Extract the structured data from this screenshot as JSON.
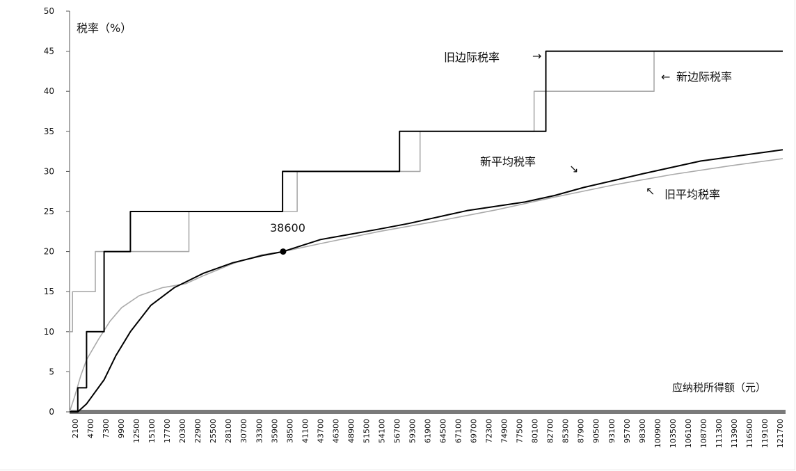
{
  "chart_data": {
    "type": "line",
    "ylabel": "税率（%）",
    "xlabel": "应纳税所得额（元）",
    "ylim": [
      0,
      50
    ],
    "yticks": [
      0,
      5,
      10,
      15,
      20,
      25,
      30,
      35,
      40,
      45,
      50
    ],
    "xlim": [
      2100,
      124000
    ],
    "xtick_labels": [
      "2100",
      "4700",
      "7300",
      "9900",
      "12500",
      "15100",
      "17700",
      "20300",
      "22900",
      "25500",
      "28100",
      "30700",
      "33300",
      "35900",
      "38500",
      "41100",
      "43700",
      "46300",
      "48900",
      "51500",
      "54100",
      "56700",
      "59300",
      "61900",
      "64500",
      "67100",
      "69700",
      "72300",
      "74900",
      "77500",
      "80100",
      "82700",
      "85300",
      "87900",
      "90500",
      "93100",
      "95700",
      "98300",
      "100900",
      "103500",
      "106100",
      "108700",
      "111300",
      "113900",
      "116500",
      "119100",
      "121700"
    ],
    "annotation_point": {
      "label": "38600",
      "x": 38600,
      "y": 20
    },
    "series": [
      {
        "name": "旧边际税率",
        "color": "#000000",
        "style": "step",
        "points": [
          [
            2100,
            0
          ],
          [
            3500,
            0
          ],
          [
            3500,
            3
          ],
          [
            5000,
            3
          ],
          [
            5000,
            10
          ],
          [
            8000,
            10
          ],
          [
            8000,
            20
          ],
          [
            12500,
            20
          ],
          [
            12500,
            25
          ],
          [
            38500,
            25
          ],
          [
            38500,
            30
          ],
          [
            58500,
            30
          ],
          [
            58500,
            35
          ],
          [
            83500,
            35
          ],
          [
            83500,
            45
          ],
          [
            124000,
            45
          ]
        ]
      },
      {
        "name": "新边际税率",
        "color": "#aaaaaa",
        "style": "step",
        "points": [
          [
            2100,
            5
          ],
          [
            2100,
            5
          ],
          [
            2100,
            10
          ],
          [
            2600,
            10
          ],
          [
            2600,
            15
          ],
          [
            6500,
            15
          ],
          [
            6500,
            20
          ],
          [
            22500,
            20
          ],
          [
            22500,
            25
          ],
          [
            41000,
            25
          ],
          [
            41000,
            30
          ],
          [
            62000,
            30
          ],
          [
            62000,
            35
          ],
          [
            81500,
            35
          ],
          [
            81500,
            40
          ],
          [
            102000,
            40
          ],
          [
            102000,
            45
          ],
          [
            124000,
            45
          ]
        ]
      },
      {
        "name": "新平均税率",
        "color": "#000000",
        "style": "line",
        "points": [
          [
            3500,
            0
          ],
          [
            5000,
            1
          ],
          [
            8000,
            4
          ],
          [
            10000,
            7
          ],
          [
            12500,
            10
          ],
          [
            16000,
            13.3
          ],
          [
            20000,
            15.5
          ],
          [
            25000,
            17.3
          ],
          [
            30000,
            18.6
          ],
          [
            35000,
            19.5
          ],
          [
            38600,
            20
          ],
          [
            45000,
            21.5
          ],
          [
            55000,
            22.8
          ],
          [
            60000,
            23.5
          ],
          [
            70000,
            25.1
          ],
          [
            80000,
            26.2
          ],
          [
            85000,
            27
          ],
          [
            90000,
            28
          ],
          [
            100000,
            29.7
          ],
          [
            110000,
            31.3
          ],
          [
            120000,
            32.3
          ],
          [
            124000,
            32.7
          ]
        ]
      },
      {
        "name": "旧平均税率",
        "color": "#aaaaaa",
        "style": "line",
        "points": [
          [
            2100,
            0
          ],
          [
            3000,
            2
          ],
          [
            4000,
            4.5
          ],
          [
            5000,
            6.5
          ],
          [
            7000,
            9
          ],
          [
            9000,
            11.3
          ],
          [
            11000,
            13
          ],
          [
            14000,
            14.5
          ],
          [
            18000,
            15.5
          ],
          [
            22000,
            16
          ],
          [
            25000,
            17
          ],
          [
            30000,
            18.5
          ],
          [
            35000,
            19.6
          ],
          [
            38600,
            20
          ],
          [
            45000,
            21
          ],
          [
            55000,
            22.5
          ],
          [
            65000,
            23.8
          ],
          [
            75000,
            25.2
          ],
          [
            85000,
            26.8
          ],
          [
            95000,
            28.3
          ],
          [
            105000,
            29.6
          ],
          [
            115000,
            30.7
          ],
          [
            124000,
            31.6
          ]
        ]
      }
    ],
    "annotations": [
      {
        "text": "旧边际税率",
        "arrow": "→"
      },
      {
        "text": "新边际税率",
        "arrow": "←"
      },
      {
        "text": "新平均税率",
        "arrow": "↘"
      },
      {
        "text": "旧平均税率",
        "arrow": "↖"
      }
    ]
  }
}
